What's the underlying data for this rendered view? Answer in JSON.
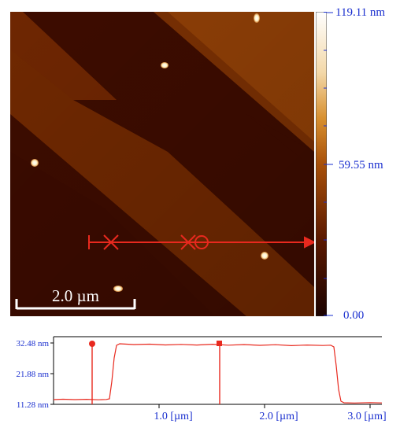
{
  "scale_bar": {
    "label": "2.0 µm"
  },
  "colorbar": {
    "max_label": "119.11 nm",
    "mid_label": "59.55 nm",
    "min_label": "0.00",
    "label_color": "#1a2fcf"
  },
  "profile": {
    "y_tick_labels": [
      "32.48 nm",
      "21.88 nm",
      "11.28 nm"
    ],
    "x_tick_labels": [
      "1.0 [µm]",
      "2.0 [µm]",
      "3.0 [µm]"
    ],
    "line_color": "#e8291e",
    "axis_label_color": "#1a2fcf"
  },
  "marker_icons": [
    "bar-icon",
    "x-icon",
    "x-icon",
    "circle-icon",
    "arrow-icon"
  ],
  "colors": {
    "terrace_dark": "#3d0c00",
    "terrace_mid": "#6b2500",
    "terrace_light": "#8e3d05",
    "profile_marker": "#e8291e"
  }
}
